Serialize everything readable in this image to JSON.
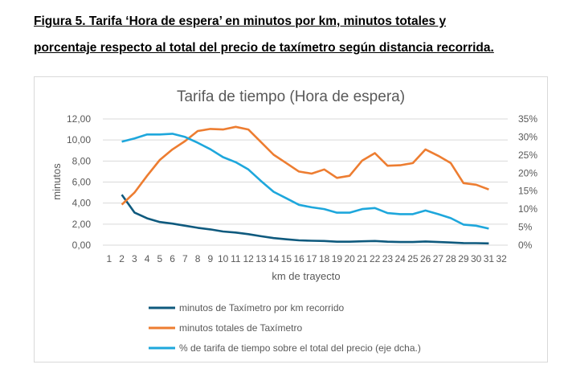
{
  "caption": {
    "line1": "Figura 5. Tarifa ‘Hora de espera’ en minutos por km, minutos totales y",
    "line2": "porcentaje respecto al total del precio de taxímetro según distancia recorrida."
  },
  "chart_data": {
    "type": "line",
    "title": "Tarifa de tiempo (Hora de espera)",
    "xlabel": "km de trayecto",
    "ylabel": "minutos",
    "categories": [
      "1",
      "2",
      "3",
      "4",
      "5",
      "6",
      "7",
      "8",
      "9",
      "10",
      "11",
      "12",
      "13",
      "14",
      "15",
      "16",
      "17",
      "18",
      "19",
      "20",
      "21",
      "22",
      "23",
      "24",
      "25",
      "26",
      "27",
      "28",
      "29",
      "30",
      "31",
      "32"
    ],
    "ylim": [
      0,
      12
    ],
    "yticks": [
      "0,00",
      "2,00",
      "4,00",
      "6,00",
      "8,00",
      "10,00",
      "12,00"
    ],
    "y2lim": [
      0,
      35
    ],
    "y2ticks": [
      "0%",
      "5%",
      "10%",
      "15%",
      "20%",
      "25%",
      "30%",
      "35%"
    ],
    "grid": true,
    "legend": "bottom",
    "series": [
      {
        "name": "minutos de Taxímetro por km recorrido",
        "axis": "left",
        "color": "#0f5a7e",
        "x": [
          2,
          3,
          4,
          5,
          6,
          7,
          8,
          9,
          10,
          11,
          12,
          13,
          14,
          15,
          16,
          17,
          18,
          19,
          20,
          21,
          22,
          23,
          24,
          25,
          26,
          27,
          28,
          29,
          30,
          31
        ],
        "values": [
          4.8,
          3.1,
          2.55,
          2.2,
          2.05,
          1.85,
          1.65,
          1.5,
          1.3,
          1.2,
          1.05,
          0.85,
          0.67,
          0.56,
          0.46,
          0.42,
          0.4,
          0.33,
          0.33,
          0.37,
          0.4,
          0.33,
          0.3,
          0.3,
          0.35,
          0.3,
          0.25,
          0.2,
          0.19,
          0.17
        ]
      },
      {
        "name": "minutos totales de Taxímetro",
        "axis": "left",
        "color": "#ed7d31",
        "x": [
          2,
          3,
          4,
          5,
          6,
          7,
          8,
          9,
          10,
          11,
          12,
          13,
          14,
          15,
          16,
          17,
          18,
          19,
          20,
          21,
          22,
          23,
          24,
          25,
          26,
          27,
          28,
          29,
          30,
          31
        ],
        "values": [
          3.85,
          5.0,
          6.6,
          8.1,
          9.1,
          9.9,
          10.85,
          11.05,
          11.0,
          11.25,
          11.0,
          9.8,
          8.6,
          7.8,
          7.0,
          6.8,
          7.2,
          6.4,
          6.6,
          8.05,
          8.75,
          7.55,
          7.6,
          7.8,
          9.1,
          8.5,
          7.8,
          5.9,
          5.75,
          5.3
        ]
      },
      {
        "name": "% de tarifa de tiempo sobre el total del precio (eje dcha.)",
        "axis": "right",
        "color": "#1ea7dc",
        "x": [
          2,
          3,
          4,
          5,
          6,
          7,
          8,
          9,
          10,
          11,
          12,
          13,
          14,
          15,
          16,
          17,
          18,
          19,
          20,
          21,
          22,
          23,
          24,
          25,
          26,
          27,
          28,
          29,
          30,
          31
        ],
        "values": [
          28.7,
          29.6,
          30.7,
          30.7,
          30.9,
          30.0,
          28.4,
          26.6,
          24.4,
          23.0,
          21.0,
          17.8,
          14.8,
          13.0,
          11.2,
          10.5,
          10.0,
          9.0,
          9.0,
          10.0,
          10.3,
          8.9,
          8.6,
          8.6,
          9.6,
          8.6,
          7.5,
          5.7,
          5.4,
          4.6
        ]
      }
    ]
  }
}
